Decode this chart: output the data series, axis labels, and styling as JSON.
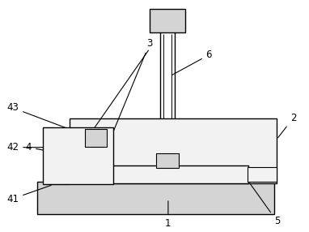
{
  "bg_color": "#ffffff",
  "lc": "#000000",
  "fc_white": "#ffffff",
  "fc_light": "#f2f2f2",
  "fc_gray": "#d4d4d4",
  "fc_dark": "#b0b0b0"
}
